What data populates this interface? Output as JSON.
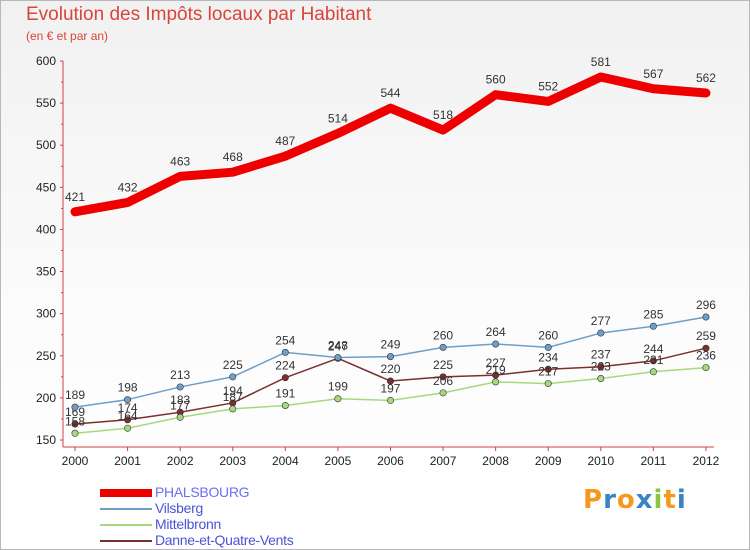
{
  "header": {
    "title": "Evolution des Impôts locaux par Habitant",
    "subtitle": "(en € et par an)"
  },
  "chart_data": {
    "type": "line",
    "title": "Evolution des Impôts locaux par Habitant",
    "subtitle": "(en € et par an)",
    "xlabel": "",
    "ylabel": "",
    "x": [
      "2000",
      "2001",
      "2002",
      "2003",
      "2004",
      "2005",
      "2006",
      "2007",
      "2008",
      "2009",
      "2010",
      "2011",
      "2012"
    ],
    "ylim": [
      150,
      600
    ],
    "yticks": [
      150,
      200,
      250,
      300,
      350,
      400,
      450,
      500,
      550,
      600
    ],
    "grid": false,
    "legend_position": "bottom-left",
    "series": [
      {
        "name": "PHALSBOURG",
        "color": "#ee0000",
        "marker": false,
        "values": [
          421,
          432,
          463,
          468,
          487,
          514,
          544,
          518,
          560,
          552,
          581,
          567,
          562
        ]
      },
      {
        "name": "Vilsberg",
        "color": "#6e9fc8",
        "marker": true,
        "values": [
          189,
          198,
          213,
          225,
          254,
          248,
          249,
          260,
          264,
          260,
          277,
          285,
          296
        ]
      },
      {
        "name": "Mittelbronn",
        "color": "#a6d97e",
        "marker": true,
        "values": [
          158,
          164,
          177,
          187,
          191,
          199,
          197,
          206,
          219,
          217,
          223,
          231,
          236
        ]
      },
      {
        "name": "Danne-et-Quatre-Vents",
        "color": "#7b2f2f",
        "marker": true,
        "values": [
          169,
          174,
          183,
          194,
          224,
          247,
          220,
          225,
          227,
          234,
          237,
          244,
          259
        ]
      }
    ]
  },
  "logo": {
    "text": "Proxiti",
    "letters": [
      "P",
      "r",
      "o",
      "x",
      "i",
      "t",
      "i"
    ],
    "colors": [
      "#f39a1d",
      "#3a83c4",
      "#f39a1d",
      "#3a83c4",
      "#8cc63f",
      "#f39a1d",
      "#3a83c4"
    ]
  }
}
